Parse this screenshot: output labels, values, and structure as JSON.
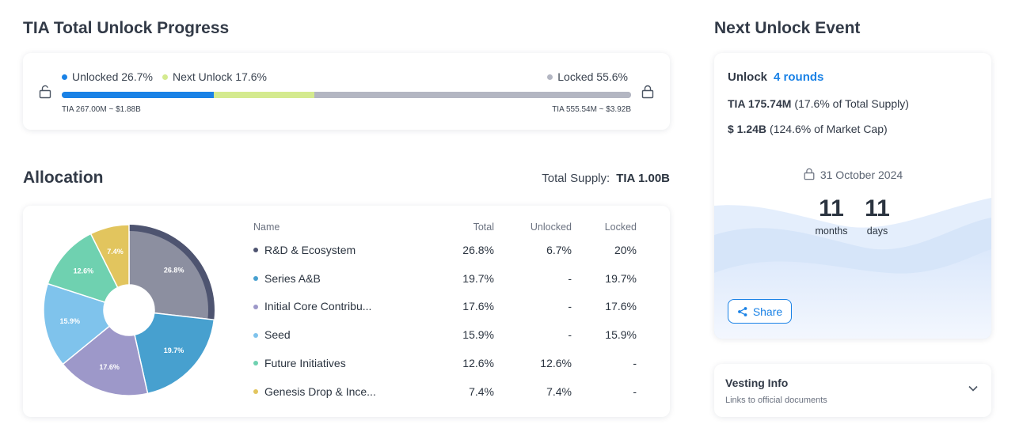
{
  "progress": {
    "title": "TIA Total Unlock Progress",
    "unlocked_label": "Unlocked 26.7%",
    "next_label": "Next Unlock 17.6%",
    "locked_label": "Locked 55.6%",
    "unlocked_pct": 26.7,
    "next_pct": 17.6,
    "locked_pct": 55.6,
    "left_note": "TIA 267.00M ~ $1.88B",
    "right_note": "TIA 555.54M ~ $3.92B",
    "colors": {
      "unlocked": "#1a82e6",
      "next": "#d4ea8f",
      "locked": "#b3b6c2"
    },
    "icons": [
      "unlock-icon",
      "lock-icon"
    ]
  },
  "allocation": {
    "title": "Allocation",
    "total_supply_label": "Total Supply:",
    "total_supply_value": "TIA 1.00B",
    "columns": [
      "Name",
      "Total",
      "Unlocked",
      "Locked"
    ],
    "rows": [
      {
        "name": "R&D & Ecosystem",
        "total": "26.8%",
        "unlocked": "6.7%",
        "locked": "20%",
        "color": "#4e5470"
      },
      {
        "name": "Series A&B",
        "total": "19.7%",
        "unlocked": "-",
        "locked": "19.7%",
        "color": "#47a0cf"
      },
      {
        "name": "Initial Core Contribu...",
        "total": "17.6%",
        "unlocked": "-",
        "locked": "17.6%",
        "color": "#9d98c9"
      },
      {
        "name": "Seed",
        "total": "15.9%",
        "unlocked": "-",
        "locked": "15.9%",
        "color": "#7fc3ec"
      },
      {
        "name": "Future Initiatives",
        "total": "12.6%",
        "unlocked": "12.6%",
        "locked": "-",
        "color": "#6fd1b0"
      },
      {
        "name": "Genesis Drop & Ince...",
        "total": "7.4%",
        "unlocked": "7.4%",
        "locked": "-",
        "color": "#e2c55e"
      }
    ]
  },
  "chart_data": {
    "type": "pie",
    "categories": [
      "R&D & Ecosystem",
      "Series A&B",
      "Initial Core Contribu...",
      "Seed",
      "Future Initiatives",
      "Genesis Drop & Ince..."
    ],
    "values": [
      26.8,
      19.7,
      17.6,
      15.9,
      12.6,
      7.4
    ],
    "labels": [
      "26.8%",
      "19.7%",
      "17.6%",
      "15.9%",
      "12.6%",
      "7.4%"
    ],
    "colors": [
      "#8c8fa0",
      "#47a0cf",
      "#9d98c9",
      "#7fc3ec",
      "#6fd1b0",
      "#e2c55e"
    ],
    "unlocked_rim": {
      "slice": 0,
      "fraction_locked": 0.75,
      "color": "#4e5470"
    },
    "donut": true,
    "title": "",
    "xlabel": "",
    "ylabel": ""
  },
  "next_unlock": {
    "title": "Next Unlock Event",
    "unlock_label": "Unlock",
    "rounds": "4 rounds",
    "amount": "TIA 175.74M",
    "amount_note": "(17.6% of Total Supply)",
    "value": "$ 1.24B",
    "value_note": "(124.6% of Market Cap)",
    "date": "31 October 2024",
    "months": "11",
    "months_label": "months",
    "days": "11",
    "days_label": "days",
    "share_label": "Share",
    "accent": "#1a82e6"
  },
  "vesting": {
    "title": "Vesting Info",
    "subtitle": "Links to official documents"
  }
}
